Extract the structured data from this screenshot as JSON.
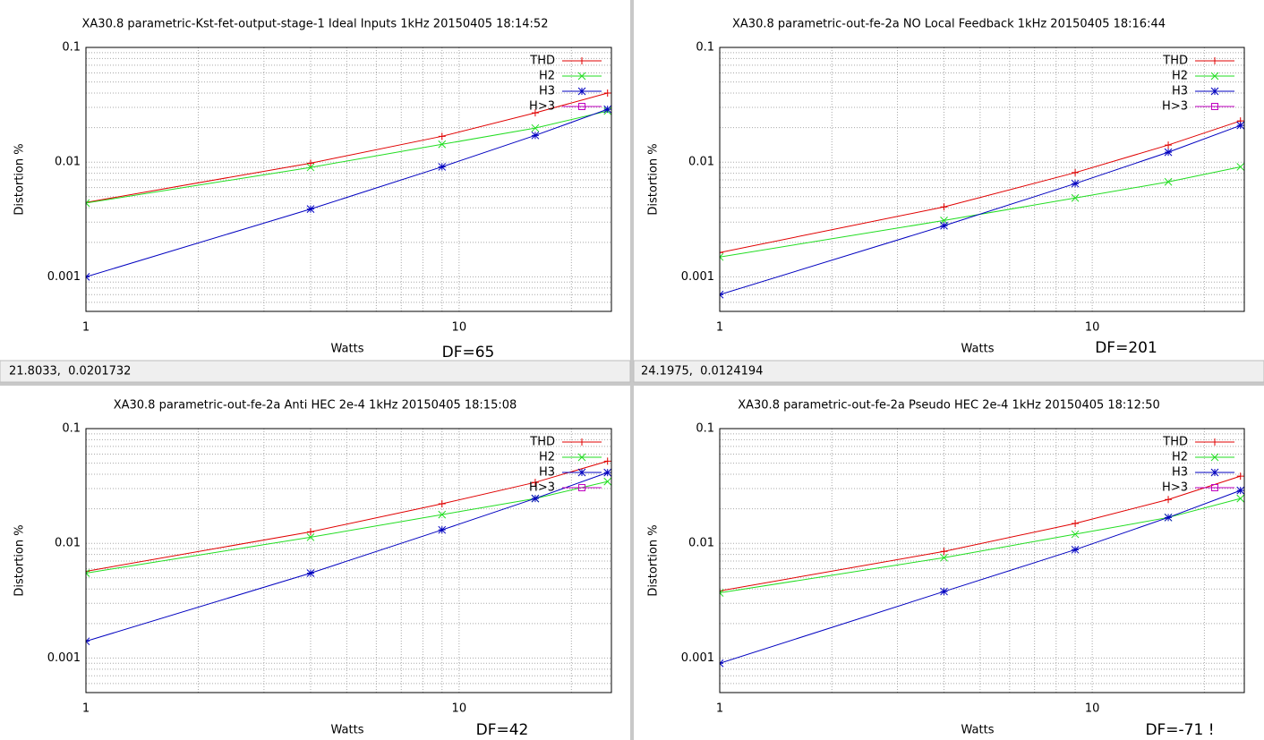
{
  "chart_data": [
    {
      "type": "line",
      "title": "XA30.8 parametric-Kst-fet-output-stage-1 Ideal Inputs 1kHz 20150405 18:14:52",
      "xlabel": "Watts",
      "ylabel": "Distortion %",
      "annotation": "DF=65",
      "status": "21.8033,  0.0201732",
      "xscale": "log",
      "yscale": "log",
      "grid": true,
      "legend": "top-right",
      "xlim": [
        1,
        25.6
      ],
      "ylim": [
        0.0005,
        0.1
      ],
      "xticks": [
        1,
        10
      ],
      "yticks": [
        0.001,
        0.01,
        0.1
      ],
      "x": [
        1,
        4,
        9,
        16,
        25
      ],
      "series": [
        {
          "name": "THD",
          "color": "#e00000",
          "marker": "plus",
          "values": [
            0.00445,
            0.0098,
            0.0168,
            0.0269,
            0.04
          ]
        },
        {
          "name": "H2",
          "color": "#22dd22",
          "marker": "cross",
          "values": [
            0.0044,
            0.009,
            0.0143,
            0.0198,
            0.0279
          ]
        },
        {
          "name": "H3",
          "color": "#0000c0",
          "marker": "star",
          "values": [
            0.001,
            0.0039,
            0.0091,
            0.0171,
            0.0289
          ]
        },
        {
          "name": "H>3",
          "color": "#c000c0",
          "marker": "square",
          "values": [
            null,
            null,
            null,
            null,
            null
          ]
        }
      ]
    },
    {
      "type": "line",
      "title": "XA30.8 parametric-out-fe-2a NO Local Feedback 1kHz 20150405 18:16:44",
      "xlabel": "Watts",
      "ylabel": "Distortion %",
      "annotation": "DF=201",
      "status": "24.1975,  0.0124194",
      "xscale": "log",
      "yscale": "log",
      "grid": true,
      "legend": "top-right",
      "xlim": [
        1,
        25.6
      ],
      "ylim": [
        0.0005,
        0.1
      ],
      "xticks": [
        1,
        10
      ],
      "yticks": [
        0.001,
        0.01,
        0.1
      ],
      "x": [
        1,
        4,
        9,
        16,
        25
      ],
      "series": [
        {
          "name": "THD",
          "color": "#e00000",
          "marker": "plus",
          "values": [
            0.00163,
            0.00407,
            0.0081,
            0.0141,
            0.0229
          ]
        },
        {
          "name": "H2",
          "color": "#22dd22",
          "marker": "cross",
          "values": [
            0.00149,
            0.0031,
            0.00487,
            0.00673,
            0.0091
          ]
        },
        {
          "name": "H3",
          "color": "#0000c0",
          "marker": "star",
          "values": [
            0.0007,
            0.00279,
            0.0065,
            0.0122,
            0.0209
          ]
        },
        {
          "name": "H>3",
          "color": "#c000c0",
          "marker": "square",
          "values": [
            null,
            null,
            null,
            null,
            null
          ]
        }
      ]
    },
    {
      "type": "line",
      "title": "XA30.8 parametric-out-fe-2a Anti HEC 2e-4 1kHz 20150405 18:15:08",
      "xlabel": "Watts",
      "ylabel": "Distortion %",
      "annotation": "DF=42",
      "xscale": "log",
      "yscale": "log",
      "grid": true,
      "legend": "top-right",
      "xlim": [
        1,
        25.6
      ],
      "ylim": [
        0.0005,
        0.1
      ],
      "xticks": [
        1,
        10
      ],
      "yticks": [
        0.001,
        0.01,
        0.1
      ],
      "x": [
        1,
        4,
        9,
        16,
        25
      ],
      "series": [
        {
          "name": "THD",
          "color": "#e00000",
          "marker": "plus",
          "values": [
            0.0057,
            0.0126,
            0.0221,
            0.034,
            0.052
          ]
        },
        {
          "name": "H2",
          "color": "#22dd22",
          "marker": "cross",
          "values": [
            0.0055,
            0.0113,
            0.0178,
            0.0246,
            0.0346
          ]
        },
        {
          "name": "H3",
          "color": "#0000c0",
          "marker": "star",
          "values": [
            0.0014,
            0.0055,
            0.0131,
            0.0246,
            0.0414
          ]
        },
        {
          "name": "H>3",
          "color": "#c000c0",
          "marker": "square",
          "values": [
            null,
            null,
            null,
            null,
            null
          ]
        }
      ]
    },
    {
      "type": "line",
      "title": "XA30.8 parametric-out-fe-2a Pseudo HEC 2e-4 1kHz 20150405 18:12:50",
      "xlabel": "Watts",
      "ylabel": "Distortion %",
      "annotation": "DF=-71 !",
      "xscale": "log",
      "yscale": "log",
      "grid": true,
      "legend": "top-right",
      "xlim": [
        1,
        25.6
      ],
      "ylim": [
        0.0005,
        0.1
      ],
      "xticks": [
        1,
        10
      ],
      "yticks": [
        0.001,
        0.01,
        0.1
      ],
      "x": [
        1,
        4,
        9,
        16,
        25
      ],
      "series": [
        {
          "name": "THD",
          "color": "#e00000",
          "marker": "plus",
          "values": [
            0.00385,
            0.0085,
            0.0149,
            0.0241,
            0.0385
          ]
        },
        {
          "name": "H2",
          "color": "#22dd22",
          "marker": "cross",
          "values": [
            0.0037,
            0.0075,
            0.012,
            0.0168,
            0.0246
          ]
        },
        {
          "name": "H3",
          "color": "#0000c0",
          "marker": "star",
          "values": [
            0.0009,
            0.0038,
            0.0088,
            0.0168,
            0.0289
          ]
        },
        {
          "name": "H>3",
          "color": "#c000c0",
          "marker": "square",
          "values": [
            null,
            null,
            null,
            null,
            null
          ]
        }
      ]
    }
  ]
}
